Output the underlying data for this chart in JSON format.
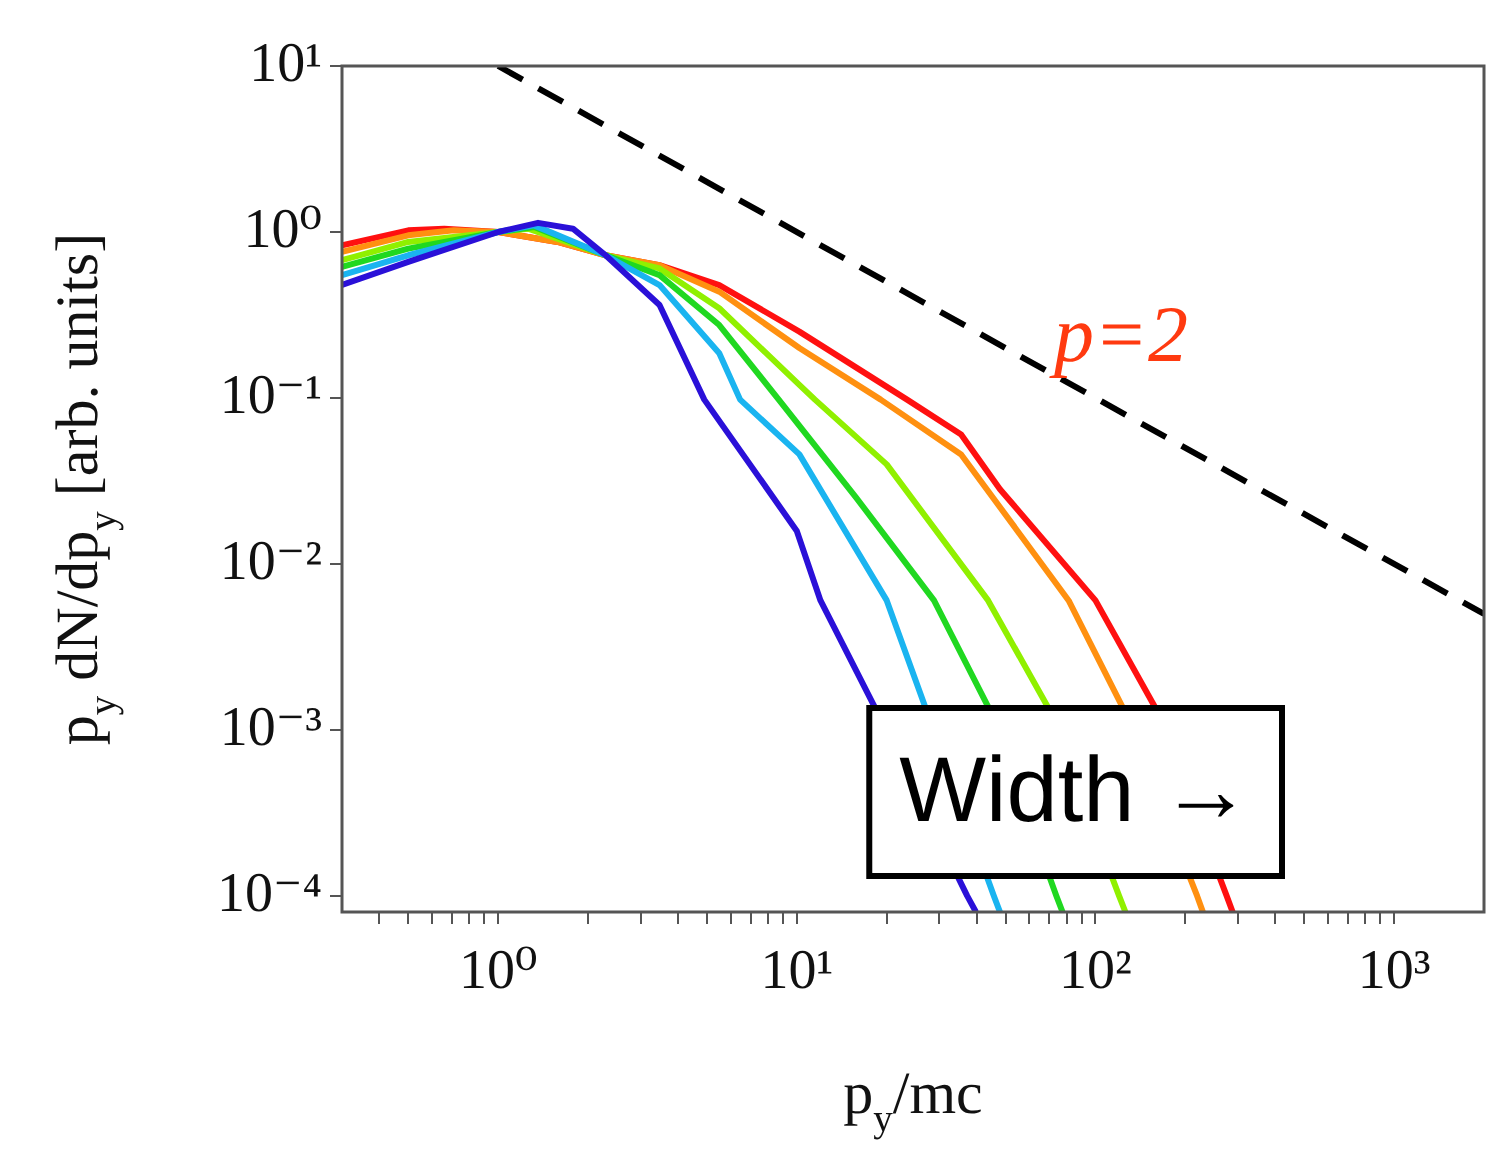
{
  "chart_data": {
    "type": "line",
    "xlabel": "p$_{y}$/mc",
    "ylabel": "p$_{y}$ dN/dp$_{y}$ [arb. units]",
    "log": "xy",
    "xlim": [
      0.3,
      2000
    ],
    "ylim": [
      8e-05,
      10
    ],
    "xticks": [
      {
        "value": 0.4,
        "label": null
      },
      {
        "value": 0.5,
        "label": null
      },
      {
        "value": 0.6,
        "label": null
      },
      {
        "value": 0.7,
        "label": null
      },
      {
        "value": 0.8,
        "label": null
      },
      {
        "value": 0.9,
        "label": null
      },
      {
        "value": 1,
        "label": "10⁰"
      },
      {
        "value": 2,
        "label": null
      },
      {
        "value": 3,
        "label": null
      },
      {
        "value": 4,
        "label": null
      },
      {
        "value": 5,
        "label": null
      },
      {
        "value": 6,
        "label": null
      },
      {
        "value": 7,
        "label": null
      },
      {
        "value": 8,
        "label": null
      },
      {
        "value": 9,
        "label": null
      },
      {
        "value": 10,
        "label": "10¹"
      },
      {
        "value": 20,
        "label": null
      },
      {
        "value": 30,
        "label": null
      },
      {
        "value": 40,
        "label": null
      },
      {
        "value": 50,
        "label": null
      },
      {
        "value": 60,
        "label": null
      },
      {
        "value": 70,
        "label": null
      },
      {
        "value": 80,
        "label": null
      },
      {
        "value": 90,
        "label": null
      },
      {
        "value": 100,
        "label": "10²"
      },
      {
        "value": 200,
        "label": null
      },
      {
        "value": 300,
        "label": null
      },
      {
        "value": 400,
        "label": null
      },
      {
        "value": 500,
        "label": null
      },
      {
        "value": 600,
        "label": null
      },
      {
        "value": 700,
        "label": null
      },
      {
        "value": 800,
        "label": null
      },
      {
        "value": 900,
        "label": null
      },
      {
        "value": 1000,
        "label": "10³"
      }
    ],
    "yticks": [
      {
        "value": 0.0001,
        "label": "10⁻⁴"
      },
      {
        "value": 0.001,
        "label": "10⁻³"
      },
      {
        "value": 0.01,
        "label": "10⁻²"
      },
      {
        "value": 0.1,
        "label": "10⁻¹"
      },
      {
        "value": 1,
        "label": "10⁰"
      },
      {
        "value": 10,
        "label": "10¹"
      }
    ],
    "series": [
      {
        "color": "#2a10d8",
        "x": [
          0.3,
          0.5,
          1,
          1.36,
          1.78,
          2.29,
          3.47,
          4.9,
          10,
          12,
          18.2,
          37.2,
          39.8
        ],
        "values": [
          0.479,
          0.661,
          1,
          1.135,
          1.047,
          0.724,
          0.363,
          0.0977,
          0.0158,
          0.00603,
          0.00138,
          0.0001,
          8e-05
        ]
      },
      {
        "color": "#1ab4f0",
        "x": [
          0.3,
          0.5,
          1,
          1.32,
          2.29,
          3.47,
          5.5,
          6.46,
          10.2,
          20,
          26.9,
          45.7,
          47.9
        ],
        "values": [
          0.55,
          0.724,
          1,
          1.096,
          0.724,
          0.479,
          0.186,
          0.0977,
          0.0457,
          0.00603,
          0.00138,
          0.0001,
          8e-05
        ]
      },
      {
        "color": "#20d820",
        "x": [
          0.3,
          0.5,
          1,
          1.32,
          2.29,
          3.47,
          5.5,
          8.7,
          15.8,
          28.8,
          43.7,
          74,
          77.6
        ],
        "values": [
          0.617,
          0.794,
          1,
          1.072,
          0.724,
          0.55,
          0.275,
          0.0977,
          0.0251,
          0.00603,
          0.00138,
          0.0001,
          8e-05
        ]
      },
      {
        "color": "#90f000",
        "x": [
          0.3,
          0.5,
          1,
          1.26,
          2.29,
          3.47,
          5.5,
          10.2,
          11.5,
          20,
          43.7,
          69.2,
          120,
          126
        ],
        "values": [
          0.676,
          0.871,
          1,
          1.047,
          0.724,
          0.603,
          0.347,
          0.12,
          0.0977,
          0.0398,
          0.00603,
          0.00138,
          0.0001,
          8e-05
        ]
      },
      {
        "color": "#ff9010",
        "x": [
          0.3,
          0.5,
          0.71,
          1,
          1.58,
          2.29,
          3.47,
          5.5,
          10.2,
          19.1,
          35.5,
          81.3,
          123,
          219,
          229
        ],
        "values": [
          0.759,
          0.955,
          1.023,
          1,
          0.871,
          0.724,
          0.631,
          0.437,
          0.2,
          0.0977,
          0.0457,
          0.00603,
          0.00138,
          0.0001,
          8e-05
        ]
      },
      {
        "color": "#ff1010",
        "x": [
          0.3,
          0.5,
          0.66,
          1,
          1.58,
          2.29,
          3.47,
          5.5,
          10.2,
          23.4,
          35.5,
          47.9,
          100,
          158,
          275,
          288
        ],
        "values": [
          0.832,
          1.023,
          1.047,
          1,
          0.871,
          0.724,
          0.631,
          0.479,
          0.251,
          0.0977,
          0.0603,
          0.0282,
          0.00603,
          0.00138,
          0.0001,
          8e-05
        ]
      },
      {
        "color": "#000000",
        "line_style": "dashed",
        "x": [
          1,
          2000
        ],
        "values": [
          10,
          0.005
        ]
      }
    ],
    "annotations": [
      "p=2",
      "Width →"
    ]
  }
}
